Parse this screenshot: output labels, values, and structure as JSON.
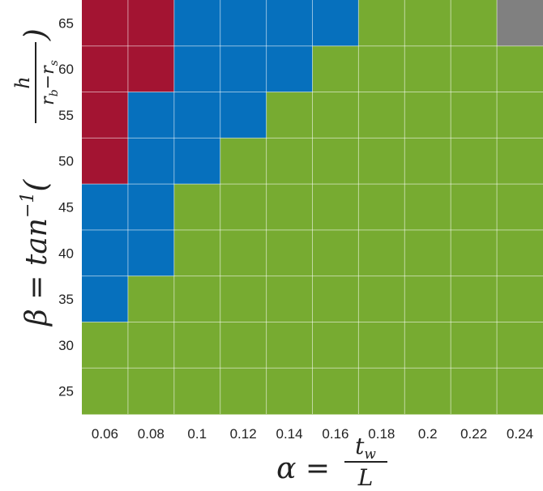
{
  "chart_data": {
    "type": "heatmap",
    "title": "",
    "xlabel": {
      "prefix": "α = ",
      "frac_num": "t",
      "frac_num_sub": "w",
      "frac_den": "L"
    },
    "ylabel": {
      "prefix": "β = tan",
      "sup": "−1",
      "open": "(",
      "frac_num": "h",
      "frac_den_a": "r",
      "frac_den_a_sub": "b",
      "frac_den_mid": "−r",
      "frac_den_b_sub": "s",
      "close": ")"
    },
    "x_ticks": [
      "0.06",
      "0.08",
      "0.1",
      "0.12",
      "0.14",
      "0.16",
      "0.18",
      "0.2",
      "0.22",
      "0.24"
    ],
    "y_ticks": [
      "25",
      "30",
      "35",
      "40",
      "45",
      "50",
      "55",
      "60",
      "65"
    ],
    "x_values": [
      0.06,
      0.08,
      0.1,
      0.12,
      0.14,
      0.16,
      0.18,
      0.2,
      0.22,
      0.24
    ],
    "y_values": [
      25,
      30,
      35,
      40,
      45,
      50,
      55,
      60,
      65
    ],
    "grid": true,
    "class_colors": {
      "red": "#a31432",
      "blue": "#0670bd",
      "green": "#77ab31",
      "gray": "#808080"
    },
    "rows_top_to_bottom": [
      {
        "y": 65,
        "cells": [
          "red",
          "red",
          "blue",
          "blue",
          "blue",
          "blue",
          "green",
          "green",
          "green",
          "gray"
        ]
      },
      {
        "y": 60,
        "cells": [
          "red",
          "red",
          "blue",
          "blue",
          "blue",
          "green",
          "green",
          "green",
          "green",
          "green"
        ]
      },
      {
        "y": 55,
        "cells": [
          "red",
          "blue",
          "blue",
          "blue",
          "green",
          "green",
          "green",
          "green",
          "green",
          "green"
        ]
      },
      {
        "y": 50,
        "cells": [
          "red",
          "blue",
          "blue",
          "green",
          "green",
          "green",
          "green",
          "green",
          "green",
          "green"
        ]
      },
      {
        "y": 45,
        "cells": [
          "blue",
          "blue",
          "green",
          "green",
          "green",
          "green",
          "green",
          "green",
          "green",
          "green"
        ]
      },
      {
        "y": 40,
        "cells": [
          "blue",
          "blue",
          "green",
          "green",
          "green",
          "green",
          "green",
          "green",
          "green",
          "green"
        ]
      },
      {
        "y": 35,
        "cells": [
          "blue",
          "green",
          "green",
          "green",
          "green",
          "green",
          "green",
          "green",
          "green",
          "green"
        ]
      },
      {
        "y": 30,
        "cells": [
          "green",
          "green",
          "green",
          "green",
          "green",
          "green",
          "green",
          "green",
          "green",
          "green"
        ]
      },
      {
        "y": 25,
        "cells": [
          "green",
          "green",
          "green",
          "green",
          "green",
          "green",
          "green",
          "green",
          "green",
          "green"
        ]
      }
    ]
  }
}
